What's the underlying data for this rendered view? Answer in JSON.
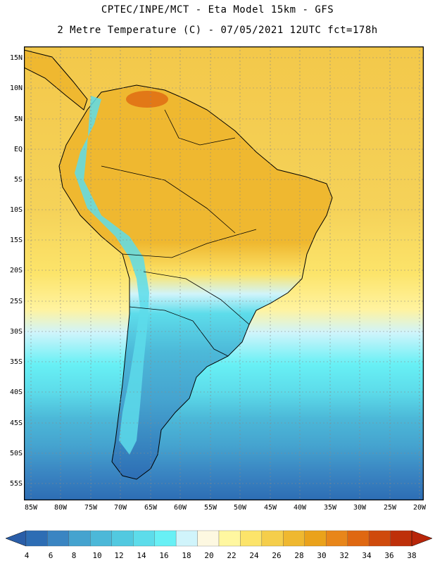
{
  "header": {
    "line1": "CPTEC/INPE/MCT -  Eta Model 15km - GFS",
    "line2": "2 Metre Temperature (C) - 07/05/2021 12UTC fct=178h"
  },
  "map": {
    "lat_labels": [
      "15N",
      "10N",
      "5N",
      "EQ",
      "5S",
      "10S",
      "15S",
      "20S",
      "25S",
      "30S",
      "35S",
      "40S",
      "45S",
      "50S",
      "55S"
    ],
    "lon_labels": [
      "85W",
      "80W",
      "75W",
      "70W",
      "65W",
      "60W",
      "55W",
      "50W",
      "45W",
      "40W",
      "35W",
      "30W",
      "25W",
      "20W"
    ]
  },
  "colorbar": {
    "labels": [
      "4",
      "6",
      "8",
      "10",
      "12",
      "14",
      "16",
      "18",
      "20",
      "22",
      "24",
      "26",
      "28",
      "30",
      "32",
      "34",
      "36",
      "38"
    ],
    "colors": [
      "#2d6db4",
      "#3a85c2",
      "#45a3cf",
      "#4cb8d8",
      "#52c9e0",
      "#5ddcea",
      "#68f0f5",
      "#d0f4fb",
      "#fdf8e1",
      "#fff7a0",
      "#fce46a",
      "#f5ce4b",
      "#efb830",
      "#eaa21b",
      "#e8861a",
      "#df6812",
      "#cf4a0c",
      "#be300a"
    ],
    "left_tip_color": "#2a5ea8",
    "right_tip_color": "#b8260a"
  },
  "colors": {
    "ocean_cold": "#2d6db4",
    "ocean_warm": "#f5ce4b",
    "outline": "#000000"
  }
}
